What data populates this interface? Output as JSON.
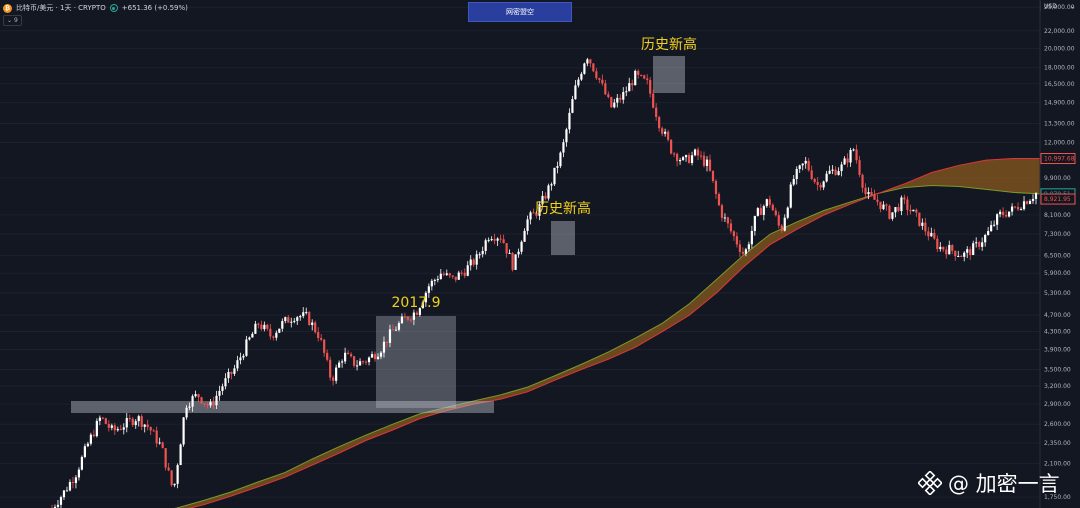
{
  "header": {
    "symbol": "比特币/美元 · 1天 · CRYPTO",
    "change": "+651.36 (+0.59%)",
    "indicator_badge": "9",
    "coin_glyph": "₿"
  },
  "banner": {
    "label": "网密盟空"
  },
  "currency": {
    "label": "USD"
  },
  "watermark": {
    "text": "@ 加密一言"
  },
  "chart_data": {
    "type": "candlestick",
    "yscale": "log",
    "ylim": [
      1650,
      26000
    ],
    "yticks": [
      "1,750.00",
      "2,100.00",
      "2,350.00",
      "2,600.00",
      "2,900.00",
      "3,200.00",
      "3,500.00",
      "3,900.00",
      "4,300.00",
      "4,700.00",
      "5,300.00",
      "5,900.00",
      "6,500.00",
      "7,300.00",
      "8,100.00",
      "9,900.00",
      "12,000.00",
      "13,300.00",
      "14,900.00",
      "16,500.00",
      "18,000.00",
      "20,000.00",
      "22,000.00",
      "25,000.00"
    ],
    "price_labels": [
      {
        "text": "10,997.68",
        "value": 10997.68,
        "color": "#ef5350"
      },
      {
        "text": "9,079.51",
        "value": 9079.51,
        "color": "#26a69a"
      },
      {
        "text": "8,921.95",
        "value": 8921.95,
        "color": "#ef5350"
      }
    ],
    "annotations": [
      {
        "text": "2017.9",
        "color": "#f2d11b"
      },
      {
        "text": "历史新高",
        "color": "#f2d11b"
      },
      {
        "text": "历史新高",
        "color": "#f2d11b"
      }
    ],
    "ribbon": {
      "fast_color": "#7a9a2a",
      "slow_color": "#e0353b",
      "fill": "#8a5a1e",
      "fast": [
        1600,
        1650,
        1720,
        1800,
        1900,
        2000,
        2150,
        2300,
        2450,
        2600,
        2750,
        2850,
        2950,
        3050,
        3180,
        3380,
        3600,
        3850,
        4150,
        4500,
        5000,
        5700,
        6500,
        7300,
        7800,
        8300,
        8700,
        9100,
        9400,
        9500,
        9450,
        9300,
        9150,
        9080
      ],
      "slow": [
        1600,
        1620,
        1680,
        1760,
        1850,
        1950,
        2080,
        2220,
        2380,
        2520,
        2680,
        2800,
        2900,
        2980,
        3100,
        3300,
        3500,
        3700,
        3950,
        4300,
        4700,
        5300,
        6100,
        6900,
        7500,
        8100,
        8600,
        9100,
        9600,
        10200,
        10600,
        10900,
        11000,
        10998
      ]
    },
    "price_path": [
      1650,
      1800,
      2000,
      2350,
      2700,
      2500,
      2600,
      2700,
      2550,
      2300,
      1800,
      2900,
      3050,
      2850,
      3200,
      3500,
      4000,
      4500,
      4200,
      4500,
      4700,
      4650,
      4200,
      3300,
      3800,
      3600,
      3700,
      3900,
      4300,
      4600,
      4800,
      5500,
      5900,
      5700,
      6000,
      6400,
      7300,
      7200,
      6100,
      7800,
      8300,
      9500,
      11500,
      15800,
      19400,
      17000,
      14500,
      15500,
      17200,
      16500,
      13300,
      11500,
      10800,
      11300,
      10600,
      8300,
      7300,
      6500,
      8100,
      8800,
      7400,
      9800,
      10800,
      9500,
      10200,
      10500,
      11600,
      9000,
      8700,
      8100,
      8700,
      8100,
      7400,
      6800,
      6700,
      6500,
      6800,
      7300,
      8100,
      8300,
      8700,
      9100
    ]
  }
}
